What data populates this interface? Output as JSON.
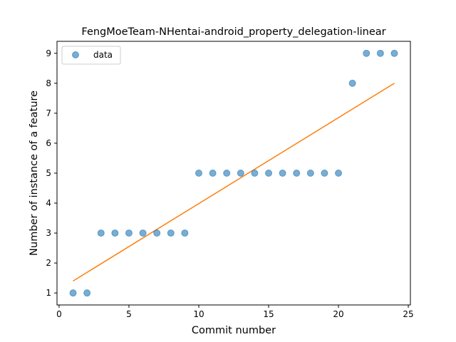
{
  "chart_data": {
    "type": "scatter",
    "title": "FengMoeTeam-NHentai-android_property_delegation-linear",
    "xlabel": "Commit number",
    "ylabel": "Number of instance of a feature",
    "xlim": [
      -0.15,
      25.15
    ],
    "ylim": [
      0.6,
      9.4
    ],
    "xticks": [
      0,
      5,
      10,
      15,
      20,
      25
    ],
    "yticks": [
      1,
      2,
      3,
      4,
      5,
      6,
      7,
      8,
      9
    ],
    "legend": {
      "placement": "top-left",
      "entries": [
        "data"
      ]
    },
    "grid": false,
    "series": [
      {
        "name": "data",
        "kind": "scatter",
        "color": "#1f77b4",
        "x": [
          1,
          2,
          3,
          4,
          5,
          6,
          7,
          8,
          9,
          10,
          11,
          12,
          13,
          14,
          15,
          16,
          17,
          18,
          19,
          20,
          21,
          22,
          23,
          24
        ],
        "y": [
          1,
          1,
          3,
          3,
          3,
          3,
          3,
          3,
          3,
          5,
          5,
          5,
          5,
          5,
          5,
          5,
          5,
          5,
          5,
          5,
          8,
          9,
          9,
          9
        ]
      },
      {
        "kind": "line",
        "color": "#ff7f0e",
        "x": [
          1,
          24
        ],
        "y": [
          1.4,
          8.0
        ]
      }
    ]
  }
}
